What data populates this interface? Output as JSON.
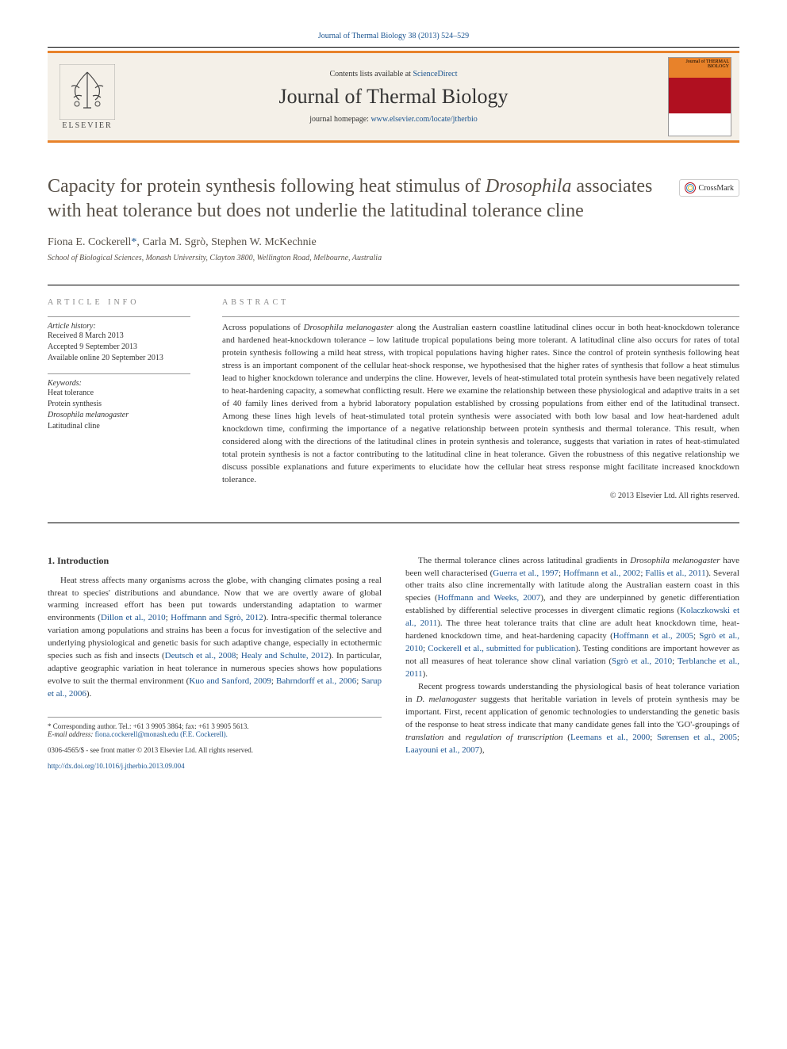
{
  "header": {
    "citation": "Journal of Thermal Biology 38 (2013) 524–529",
    "contents_prefix": "Contents lists available at ",
    "contents_link": "ScienceDirect",
    "journal_name": "Journal of Thermal Biology",
    "homepage_prefix": "journal homepage: ",
    "homepage_link": "www.elsevier.com/locate/jtherbio",
    "elsevier_label": "ELSEVIER",
    "cover_label": "Journal of THERMAL BIOLOGY"
  },
  "crossmark": {
    "label": "CrossMark"
  },
  "article": {
    "title_html": "Capacity for protein synthesis following heat stimulus of <em>Drosophila</em> associates with heat tolerance but does not underlie the latitudinal tolerance cline",
    "authors_html": "Fiona E. Cockerell<a>*</a>, Carla M. Sgrò, Stephen W. McKechnie",
    "affiliation": "School of Biological Sciences, Monash University, Clayton 3800, Wellington Road, Melbourne, Australia"
  },
  "info": {
    "heading": "ARTICLE INFO",
    "history_label": "Article history:",
    "history_lines": "Received 8 March 2013\nAccepted 9 September 2013\nAvailable online 20 September 2013",
    "keywords_label": "Keywords:",
    "keywords_lines": "Heat tolerance\nProtein synthesis\nDrosophila melanogaster\nLatitudinal cline"
  },
  "abstract": {
    "heading": "ABSTRACT",
    "text_html": "Across populations of <em>Drosophila melanogaster</em> along the Australian eastern coastline latitudinal clines occur in both heat-knockdown tolerance and hardened heat-knockdown tolerance – low latitude tropical populations being more tolerant. A latitudinal cline also occurs for rates of total protein synthesis following a mild heat stress, with tropical populations having higher rates. Since the control of protein synthesis following heat stress is an important component of the cellular heat-shock response, we hypothesised that the higher rates of synthesis that follow a heat stimulus lead to higher knockdown tolerance and underpins the cline. However, levels of heat-stimulated total protein synthesis have been negatively related to heat-hardening capacity, a somewhat conflicting result. Here we examine the relationship between these physiological and adaptive traits in a set of 40 family lines derived from a hybrid laboratory population established by crossing populations from either end of the latitudinal transect. Among these lines high levels of heat-stimulated total protein synthesis were associated with both low basal and low heat-hardened adult knockdown time, confirming the importance of a negative relationship between protein synthesis and thermal tolerance. This result, when considered along with the directions of the latitudinal clines in protein synthesis and tolerance, suggests that variation in rates of heat-stimulated total protein synthesis is not a factor contributing to the latitudinal cline in heat tolerance. Given the robustness of this negative relationship we discuss possible explanations and future experiments to elucidate how the cellular heat stress response might facilitate increased knockdown tolerance.",
    "copyright": "© 2013 Elsevier Ltd. All rights reserved."
  },
  "intro": {
    "heading": "1.  Introduction",
    "para1_html": "Heat stress affects many organisms across the globe, with changing climates posing a real threat to species' distributions and abundance. Now that we are overtly aware of global warming increased effort has been put towards understanding adaptation to warmer environments (<a>Dillon et al., 2010</a>; <a>Hoffmann and Sgrò, 2012</a>). Intra-specific thermal tolerance variation among populations and strains has been a focus for investigation of the selective and underlying physiological and genetic basis for such adaptive change, especially in ectothermic species such as fish and insects (<a>Deutsch et al., 2008</a>; <a>Healy and Schulte, 2012</a>). In particular, adaptive geographic variation in heat tolerance in numerous species shows how populations evolve to suit the thermal environment (<a>Kuo and Sanford, 2009</a>; <a>Bahrndorff et al., 2006</a>; <a>Sarup et al., 2006</a>).",
    "para2_html": "The thermal tolerance clines across latitudinal gradients in <em>Drosophila melanogaster</em> have been well characterised (<a>Guerra et al., 1997</a>; <a>Hoffmann et al., 2002</a>; <a>Fallis et al., 2011</a>). Several other traits also cline incrementally with latitude along the Australian eastern coast in this species (<a>Hoffmann and Weeks, 2007</a>), and they are underpinned by genetic differentiation established by differential selective processes in divergent climatic regions (<a>Kolaczkowski et al., 2011</a>). The three heat tolerance traits that cline are adult heat knockdown time, heat-hardened knockdown time, and heat-hardening capacity (<a>Hoffmann et al., 2005</a>; <a>Sgrò et al., 2010</a>; <a>Cockerell et al., submitted for publication</a>). Testing conditions are important however as not all measures of heat tolerance show clinal variation (<a>Sgrò et al., 2010</a>; <a>Terblanche et al., 2011</a>).",
    "para3_html": "Recent progress towards understanding the physiological basis of heat tolerance variation in <em>D. melanogaster</em> suggests that heritable variation in levels of protein synthesis may be important. First, recent application of genomic technologies to understanding the genetic basis of the response to heat stress indicate that many candidate genes fall into the 'GO'-groupings of <em>translation</em> and <em>regulation of transcription</em> (<a>Leemans et al., 2000</a>; <a>Sørensen et al., 2005</a>; <a>Laayouni et al., 2007</a>),"
  },
  "footnote": {
    "corr": "* Corresponding author. Tel.: +61 3 9905 3864; fax: +61 3 9905 5613.",
    "email_label": "E-mail address: ",
    "email": "fiona.cockerell@monash.edu (F.E. Cockerell)."
  },
  "footer": {
    "issn": "0306-4565/$ - see front matter © 2013 Elsevier Ltd. All rights reserved.",
    "doi": "http://dx.doi.org/10.1016/j.jtherbio.2013.09.004"
  },
  "colors": {
    "accent_orange": "#e8822a",
    "link_blue": "#1a5490",
    "text_gray": "#575047",
    "cover_red": "#b01020"
  }
}
